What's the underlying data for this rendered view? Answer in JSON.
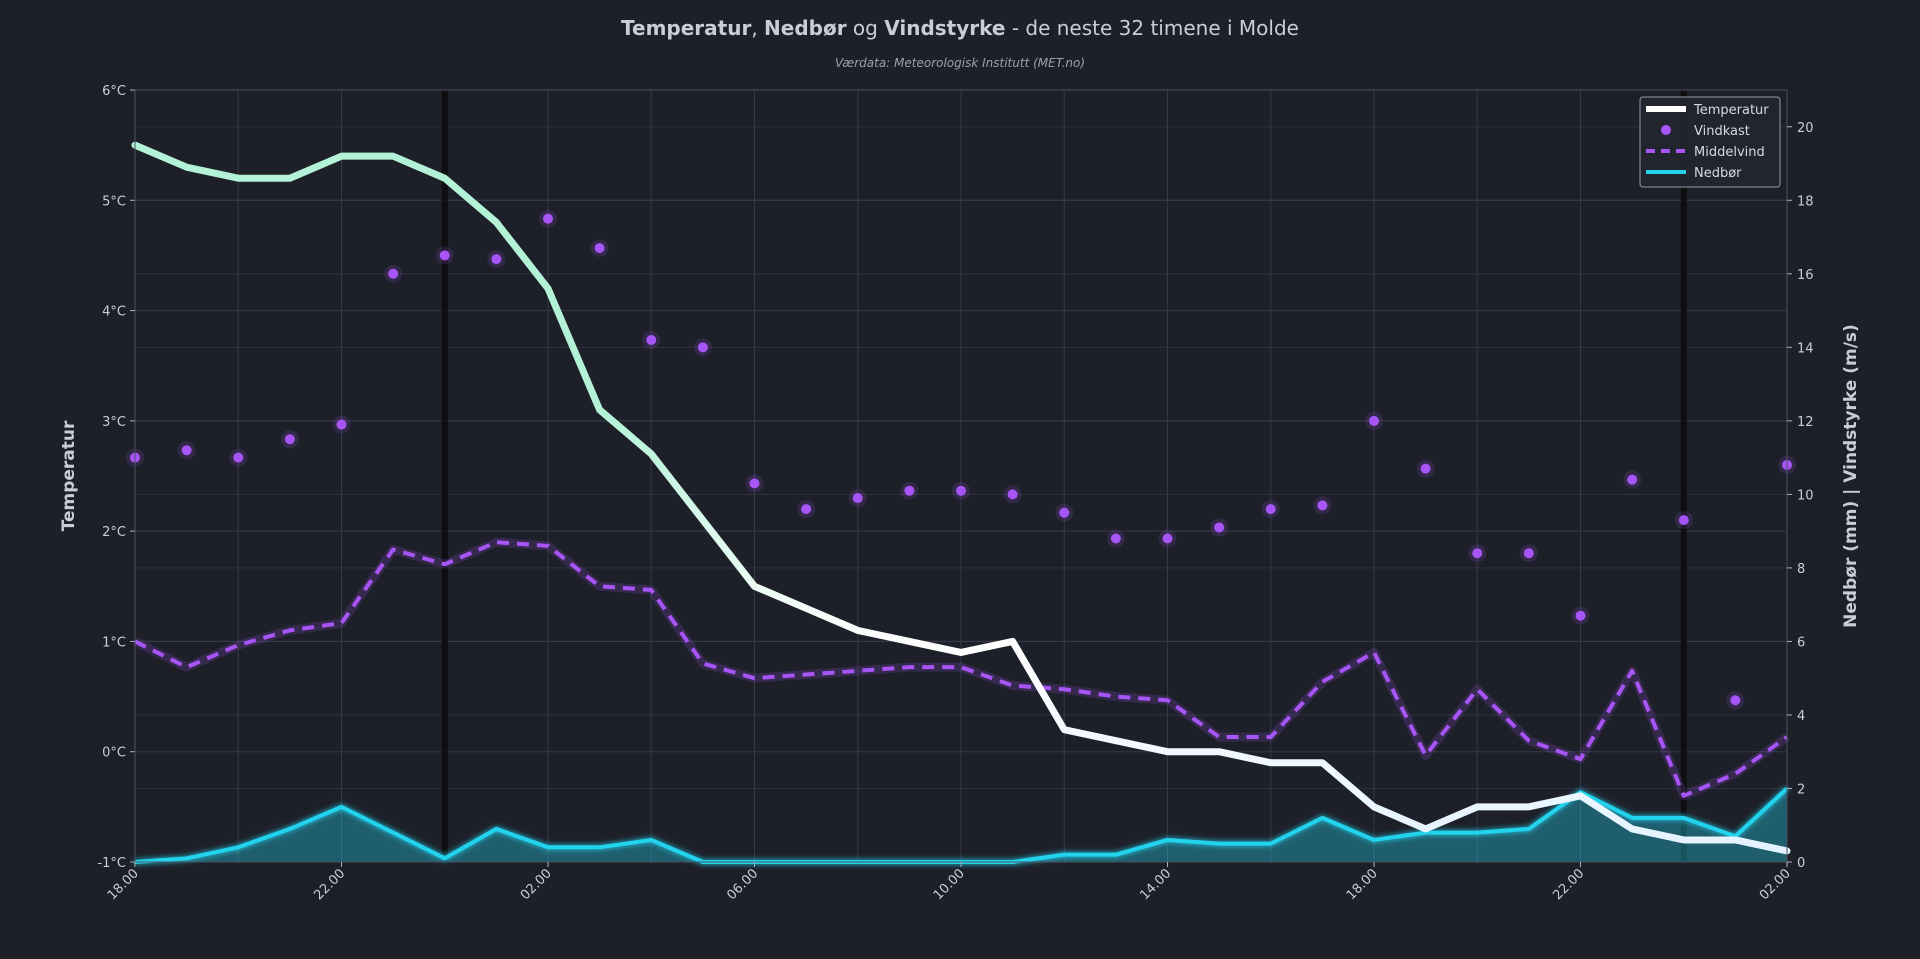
{
  "title": {
    "part1": "Temperatur",
    "sep1": ", ",
    "part2": "Nedbør",
    "sep2": " og ",
    "part3": "Vindstyrke",
    "rest": " - de neste 32 timene i Molde"
  },
  "subtitle": "Værdata: Meteorologisk Institutt (MET.no)",
  "chart_data": {
    "type": "line",
    "y_left_label": "Temperatur",
    "y_right_label": "Nedbør (mm)  |  Vindstyrke (m/s)",
    "y_left_range": [
      -1,
      6
    ],
    "y_left_ticks": [
      "-1°C",
      "0°C",
      "1°C",
      "2°C",
      "3°C",
      "4°C",
      "5°C",
      "6°C"
    ],
    "y_right_range": [
      0,
      21
    ],
    "y_right_ticks": [
      "0",
      "2",
      "4",
      "6",
      "8",
      "10",
      "12",
      "14",
      "16",
      "18",
      "20"
    ],
    "x_tick_labels": [
      "18.00",
      "22.00",
      "02.00",
      "06.00",
      "10.00",
      "14.00",
      "18.00",
      "22.00",
      "02.00"
    ],
    "x_hours": 32,
    "midnight_markers_hour": [
      6,
      30
    ],
    "grid": true,
    "legend_position": "top-right",
    "series": [
      {
        "name": "Temperatur",
        "axis": "left",
        "style": "line",
        "values": [
          5.5,
          5.3,
          5.2,
          5.2,
          5.4,
          5.4,
          5.2,
          4.8,
          4.2,
          3.1,
          2.7,
          2.1,
          1.5,
          1.3,
          1.1,
          1.0,
          0.9,
          1.0,
          0.2,
          0.1,
          0.0,
          0.0,
          -0.1,
          -0.1,
          -0.5,
          -0.7,
          -0.5,
          -0.5,
          -0.4,
          -0.7,
          -0.8,
          -0.8,
          -0.9
        ]
      },
      {
        "name": "Vindkast",
        "axis": "right",
        "style": "scatter",
        "values": [
          11.0,
          11.2,
          11.0,
          11.5,
          11.9,
          16.0,
          16.5,
          16.4,
          17.5,
          16.7,
          14.2,
          14.0,
          10.3,
          9.6,
          9.9,
          10.1,
          10.1,
          10.0,
          9.5,
          8.8,
          8.8,
          9.1,
          9.6,
          9.7,
          12.0,
          10.7,
          8.4,
          8.4,
          6.7,
          10.4,
          9.3,
          4.4,
          10.8
        ]
      },
      {
        "name": "Middelvind",
        "axis": "right",
        "style": "dashed",
        "values": [
          6.0,
          5.3,
          5.9,
          6.3,
          6.5,
          8.5,
          8.1,
          8.7,
          8.6,
          7.5,
          7.4,
          5.4,
          5.0,
          5.1,
          5.2,
          5.3,
          5.3,
          4.8,
          4.7,
          4.5,
          4.4,
          3.4,
          3.4,
          4.9,
          5.7,
          2.9,
          4.7,
          3.3,
          2.8,
          5.2,
          1.8,
          2.4,
          3.4
        ]
      },
      {
        "name": "Nedbør",
        "axis": "right",
        "style": "area",
        "values": [
          0.0,
          0.1,
          0.4,
          0.9,
          1.5,
          0.8,
          0.1,
          0.9,
          0.4,
          0.4,
          0.6,
          0.0,
          0.0,
          0.0,
          0.0,
          0.0,
          0.0,
          0.0,
          0.2,
          0.2,
          0.6,
          0.5,
          0.5,
          1.2,
          0.6,
          0.8,
          0.8,
          0.9,
          1.9,
          1.2,
          1.2,
          0.7,
          2.0
        ]
      }
    ]
  },
  "colors": {
    "background": "#1e2029",
    "grid": "#3a4050",
    "temp_warm": "#b4f2d8",
    "temp_cold": "#ffffff",
    "wind": "#a855f7",
    "rain": "#22d3ee",
    "midnight": "#0d0d0f"
  }
}
